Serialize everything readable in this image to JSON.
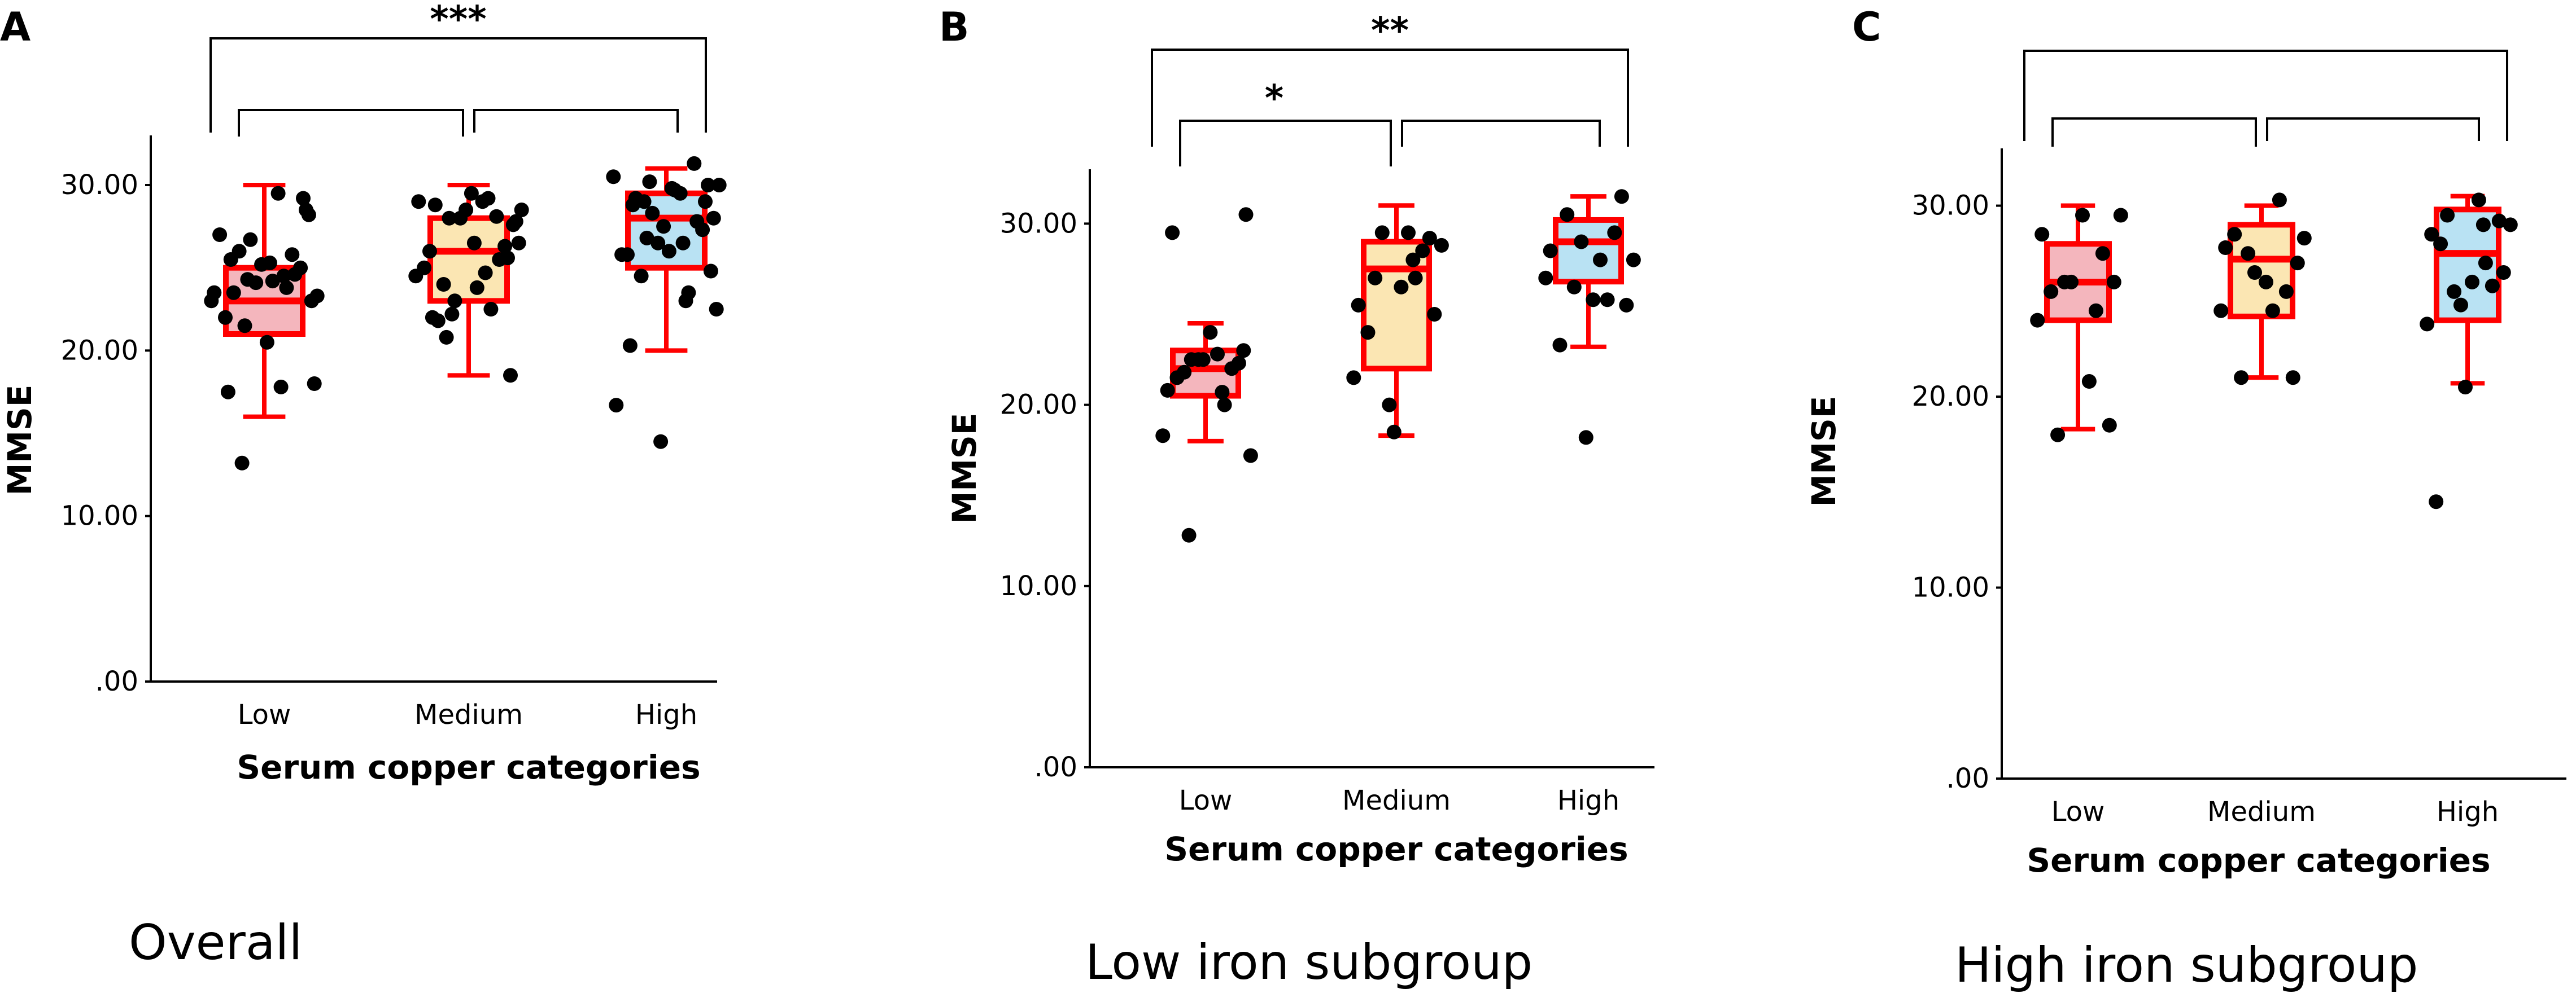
{
  "chart_data": [
    {
      "panel_label": "A",
      "type": "box",
      "caption": "Overall",
      "xlabel": "Serum copper categories",
      "ylabel": "MMSE",
      "categories": [
        "Low",
        "Medium",
        "High"
      ],
      "y_ticks": [
        ".00",
        "10.00",
        "20.00",
        "30.00"
      ],
      "ylim": [
        0,
        33
      ],
      "box_colors": [
        "#f4b6bd",
        "#fbe6b3",
        "#b9e2f3"
      ],
      "boxes": [
        {
          "category": "Low",
          "whisker_low": 16.0,
          "q1": 21.0,
          "median": 23.0,
          "q3": 25.0,
          "whisker_high": 30.0
        },
        {
          "category": "Medium",
          "whisker_low": 18.5,
          "q1": 23.0,
          "median": 26.0,
          "q3": 28.0,
          "whisker_high": 30.0
        },
        {
          "category": "High",
          "whisker_low": 20.0,
          "q1": 25.0,
          "median": 28.0,
          "q3": 29.5,
          "whisker_high": 31.0
        }
      ],
      "points": [
        [
          23.5,
          23.8,
          24.3,
          28.2,
          25.5,
          25.3,
          23.3,
          24.1,
          24.6,
          27.0,
          29.5,
          26.0,
          29.2,
          25.2,
          24.5,
          22.0,
          23.0,
          21.5,
          24.2,
          23.0,
          25.8,
          26.7,
          25.0,
          23.5,
          20.5,
          18.0,
          17.5,
          17.8,
          13.2,
          28.5
        ],
        [
          29.0,
          22.5,
          22.2,
          27.6,
          28.8,
          26.5,
          28.5,
          28.0,
          25.5,
          25.0,
          29.0,
          24.0,
          25.6,
          28.5,
          29.2,
          26.0,
          27.8,
          28.0,
          23.8,
          24.5,
          28.1,
          23.0,
          26.3,
          21.8,
          29.5,
          26.5,
          22.0,
          24.7,
          20.8,
          18.5
        ],
        [
          16.7,
          23.5,
          30.2,
          24.8,
          28.8,
          29.8,
          30.0,
          26.5,
          27.8,
          25.8,
          29.5,
          24.5,
          29.0,
          27.5,
          23.0,
          25.8,
          28.0,
          26.8,
          29.7,
          30.5,
          31.3,
          28.3,
          27.3,
          29.2,
          26.0,
          22.5,
          20.3,
          26.5,
          29.0,
          30.0,
          14.5
        ]
      ],
      "significance": [
        {
          "between": [
            "Low",
            "High"
          ],
          "label": "***"
        },
        {
          "between": [
            "Low",
            "Medium"
          ],
          "label": ""
        },
        {
          "between": [
            "Medium",
            "High"
          ],
          "label": ""
        }
      ]
    },
    {
      "panel_label": "B",
      "type": "box",
      "caption": "Low iron subgroup",
      "xlabel": "Serum copper categories",
      "ylabel": "MMSE",
      "categories": [
        "Low",
        "Medium",
        "High"
      ],
      "y_ticks": [
        ".00",
        "10.00",
        "20.00",
        "30.00"
      ],
      "ylim": [
        0,
        33
      ],
      "box_colors": [
        "#f4b6bd",
        "#fbe6b3",
        "#b9e2f3"
      ],
      "boxes": [
        {
          "category": "Low",
          "whisker_low": 18.0,
          "q1": 20.5,
          "median": 22.0,
          "q3": 23.0,
          "whisker_high": 24.5
        },
        {
          "category": "Medium",
          "whisker_low": 18.3,
          "q1": 22.0,
          "median": 27.5,
          "q3": 29.0,
          "whisker_high": 31.0
        },
        {
          "category": "High",
          "whisker_low": 23.2,
          "q1": 26.8,
          "median": 29.0,
          "q3": 30.2,
          "whisker_high": 31.5
        }
      ],
      "points": [
        [
          18.3,
          20.0,
          22.5,
          23.0,
          21.5,
          24.0,
          17.2,
          22.5,
          22.0,
          20.8,
          22.8,
          21.8,
          22.3,
          22.5,
          20.7,
          29.5,
          30.5,
          12.8
        ],
        [
          21.5,
          27.0,
          29.5,
          25.0,
          24.0,
          26.5,
          28.8,
          20.0,
          28.5,
          25.5,
          29.5,
          27.0,
          29.2,
          18.5,
          28.0
        ],
        [
          27.0,
          25.8,
          26.5,
          25.5,
          23.3,
          25.8,
          28.0,
          29.0,
          29.5,
          28.5,
          28.0,
          30.5,
          31.5,
          18.2
        ]
      ],
      "significance": [
        {
          "between": [
            "Low",
            "High"
          ],
          "label": "**"
        },
        {
          "between": [
            "Low",
            "Medium"
          ],
          "label": "*"
        },
        {
          "between": [
            "Medium",
            "High"
          ],
          "label": ""
        }
      ]
    },
    {
      "panel_label": "C",
      "type": "box",
      "caption": "High iron subgroup",
      "xlabel": "Serum copper categories",
      "ylabel": "MMSE",
      "categories": [
        "Low",
        "Medium",
        "High"
      ],
      "y_ticks": [
        ".00",
        "10.00",
        "20.00",
        "30.00"
      ],
      "ylim": [
        0,
        33
      ],
      "box_colors": [
        "#f4b6bd",
        "#fbe6b3",
        "#b9e2f3"
      ],
      "boxes": [
        {
          "category": "Low",
          "whisker_low": 18.3,
          "q1": 24.0,
          "median": 26.0,
          "q3": 28.0,
          "whisker_high": 30.0
        },
        {
          "category": "Medium",
          "whisker_low": 21.0,
          "q1": 24.2,
          "median": 27.2,
          "q3": 29.0,
          "whisker_high": 30.0
        },
        {
          "category": "High",
          "whisker_low": 20.7,
          "q1": 24.0,
          "median": 27.5,
          "q3": 29.8,
          "whisker_high": 30.5
        }
      ],
      "points": [
        [
          24.0,
          24.5,
          26.0,
          26.0,
          25.5,
          29.5,
          29.5,
          26.0,
          27.5,
          28.5,
          20.8,
          18.0,
          18.5
        ],
        [
          24.5,
          30.3,
          27.5,
          27.0,
          28.5,
          26.0,
          28.3,
          26.5,
          25.5,
          27.8,
          24.5,
          21.0,
          21.0
        ],
        [
          23.8,
          27.0,
          25.5,
          26.5,
          28.0,
          26.0,
          29.0,
          24.8,
          25.8,
          28.5,
          30.3,
          29.5,
          29.2,
          20.5,
          29.0,
          14.5
        ]
      ],
      "significance": [
        {
          "between": [
            "Low",
            "High"
          ],
          "label": ""
        },
        {
          "between": [
            "Low",
            "Medium"
          ],
          "label": ""
        },
        {
          "between": [
            "Medium",
            "High"
          ],
          "label": ""
        }
      ]
    }
  ]
}
